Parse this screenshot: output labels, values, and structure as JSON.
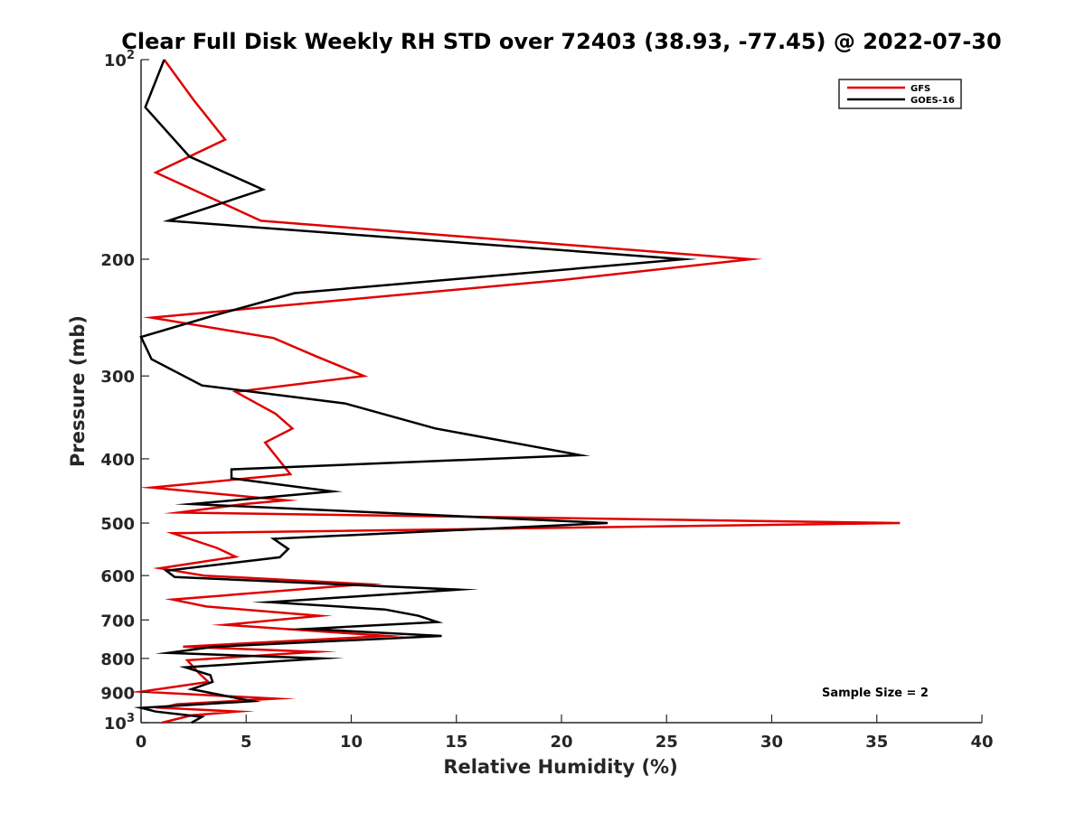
{
  "chart_data": {
    "type": "line",
    "title": "Clear Full Disk Weekly RH STD over 72403 (38.93, -77.45) @ 2022-07-30",
    "xlabel": "Relative Humidity (%)",
    "ylabel": "Pressure (mb)",
    "xlim": [
      0,
      40
    ],
    "ylim": [
      100,
      1000
    ],
    "y_scale": "log",
    "y_reversed": true,
    "grid": false,
    "legend_position": "top-right",
    "x_ticks": [
      "0",
      "5",
      "10",
      "15",
      "20",
      "25",
      "30",
      "35",
      "40"
    ],
    "x_tick_values": [
      0,
      5,
      10,
      15,
      20,
      25,
      30,
      35,
      40
    ],
    "y_ticks": [
      {
        "value": 100,
        "base": "10",
        "exp": "2"
      },
      {
        "value": 200,
        "label": "200"
      },
      {
        "value": 300,
        "label": "300"
      },
      {
        "value": 400,
        "label": "400"
      },
      {
        "value": 500,
        "label": "500"
      },
      {
        "value": 600,
        "label": "600"
      },
      {
        "value": 700,
        "label": "700"
      },
      {
        "value": 800,
        "label": "800"
      },
      {
        "value": 900,
        "label": "900"
      },
      {
        "value": 1000,
        "base": "10",
        "exp": "3"
      }
    ],
    "annotation": "Sample Size = 2",
    "series": [
      {
        "name": "GFS",
        "color": "#e00000",
        "points": [
          [
            1.1,
            100
          ],
          [
            2.5,
            115
          ],
          [
            4.0,
            132
          ],
          [
            0.7,
            148
          ],
          [
            5.7,
            175
          ],
          [
            29.0,
            200
          ],
          [
            20.0,
            215
          ],
          [
            0.5,
            245
          ],
          [
            6.3,
            263
          ],
          [
            8.3,
            280
          ],
          [
            10.6,
            300
          ],
          [
            4.5,
            317
          ],
          [
            6.4,
            342
          ],
          [
            7.2,
            360
          ],
          [
            5.9,
            378
          ],
          [
            7.1,
            422
          ],
          [
            0.5,
            442
          ],
          [
            6.9,
            462
          ],
          [
            4.9,
            468
          ],
          [
            1.8,
            482
          ],
          [
            36.1,
            500
          ],
          [
            1.5,
            518
          ],
          [
            3.6,
            545
          ],
          [
            4.5,
            562
          ],
          [
            0.9,
            585
          ],
          [
            3.0,
            600
          ],
          [
            10.7,
            618
          ],
          [
            1.5,
            652
          ],
          [
            3.1,
            668
          ],
          [
            8.5,
            690
          ],
          [
            4.0,
            712
          ],
          [
            11.7,
            740
          ],
          [
            2.0,
            768
          ],
          [
            8.3,
            782
          ],
          [
            2.2,
            805
          ],
          [
            2.8,
            845
          ],
          [
            3.2,
            868
          ],
          [
            0.0,
            898
          ],
          [
            6.4,
            920
          ],
          [
            1.7,
            938
          ],
          [
            1.0,
            950
          ],
          [
            4.6,
            962
          ],
          [
            2.4,
            975
          ],
          [
            1.0,
            1000
          ]
        ]
      },
      {
        "name": "GOES-16",
        "color": "#000000",
        "points": [
          [
            1.1,
            100
          ],
          [
            0.2,
            118
          ],
          [
            2.3,
            140
          ],
          [
            5.8,
            157
          ],
          [
            1.3,
            175
          ],
          [
            25.8,
            200
          ],
          [
            7.3,
            225
          ],
          [
            3.5,
            243
          ],
          [
            0.0,
            262
          ],
          [
            0.5,
            283
          ],
          [
            2.9,
            310
          ],
          [
            9.7,
            330
          ],
          [
            14.0,
            360
          ],
          [
            19.0,
            385
          ],
          [
            20.9,
            395
          ],
          [
            4.3,
            415
          ],
          [
            4.3,
            428
          ],
          [
            9.1,
            448
          ],
          [
            2.4,
            468
          ],
          [
            22.2,
            500
          ],
          [
            6.3,
            528
          ],
          [
            7.0,
            547
          ],
          [
            6.6,
            563
          ],
          [
            1.2,
            590
          ],
          [
            1.6,
            603
          ],
          [
            15.1,
            630
          ],
          [
            6.1,
            658
          ],
          [
            11.6,
            675
          ],
          [
            13.2,
            690
          ],
          [
            14.1,
            705
          ],
          [
            7.9,
            722
          ],
          [
            14.3,
            740
          ],
          [
            3.5,
            768
          ],
          [
            1.3,
            785
          ],
          [
            8.6,
            800
          ],
          [
            2.1,
            825
          ],
          [
            3.3,
            848
          ],
          [
            3.4,
            868
          ],
          [
            2.4,
            890
          ],
          [
            5.3,
            928
          ],
          [
            0.0,
            950
          ],
          [
            0.7,
            962
          ],
          [
            2.9,
            980
          ],
          [
            2.4,
            1000
          ]
        ]
      }
    ]
  }
}
